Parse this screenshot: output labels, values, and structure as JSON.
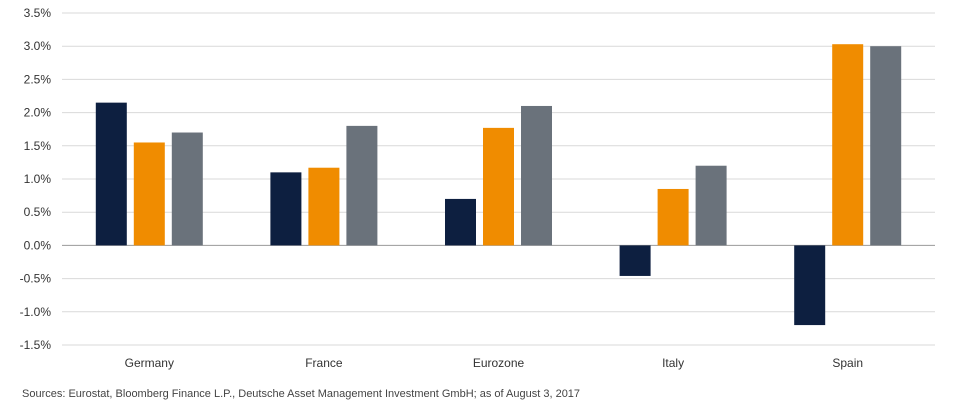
{
  "chart_data": {
    "type": "bar",
    "categories": [
      "Germany",
      "France",
      "Eurozone",
      "Italy",
      "Spain"
    ],
    "series": [
      {
        "values": [
          2.15,
          1.1,
          0.7,
          -0.46,
          -1.2
        ],
        "color": "#0d1f40"
      },
      {
        "values": [
          1.55,
          1.17,
          1.77,
          0.85,
          3.03
        ],
        "color": "#f08c00"
      },
      {
        "values": [
          1.7,
          1.8,
          2.1,
          1.2,
          3.0
        ],
        "color": "#6a727b"
      }
    ],
    "yticks": [
      "-1.5%",
      "-1.0%",
      "-0.5%",
      "0.0%",
      "0.5%",
      "1.0%",
      "1.5%",
      "2.0%",
      "2.5%",
      "3.0%",
      "3.5%"
    ],
    "ylim": [
      -1.5,
      3.5
    ],
    "grid": true,
    "title": "",
    "xlabel": "",
    "ylabel": ""
  },
  "footnote": "Sources: Eurostat, Bloomberg Finance L.P., Deutsche Asset Management Investment GmbH; as of August 3, 2017"
}
